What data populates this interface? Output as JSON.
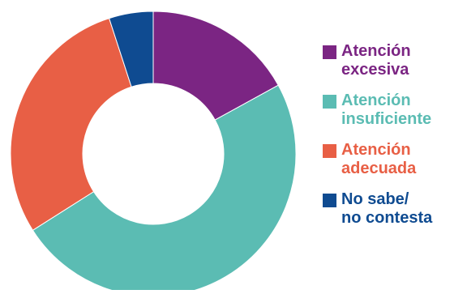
{
  "chart_data": {
    "type": "pie",
    "donut": true,
    "categories": [
      "Atención excesiva",
      "Atención insuficiente",
      "Atención adecuada",
      "No sabe/ no contesta"
    ],
    "values": [
      17,
      49,
      29,
      5
    ],
    "colors": [
      "#7b2583",
      "#5bbcb3",
      "#e85f45",
      "#0f4b91"
    ]
  },
  "legend": {
    "items": [
      {
        "line1": "Atención",
        "line2": "excesiva",
        "color": "#7b2583"
      },
      {
        "line1": "Atención",
        "line2": "insuficiente",
        "color": "#5bbcb3"
      },
      {
        "line1": "Atención",
        "line2": "adecuada",
        "color": "#e85f45"
      },
      {
        "line1": "No sabe/",
        "line2": "no contesta",
        "color": "#0f4b91"
      }
    ]
  }
}
